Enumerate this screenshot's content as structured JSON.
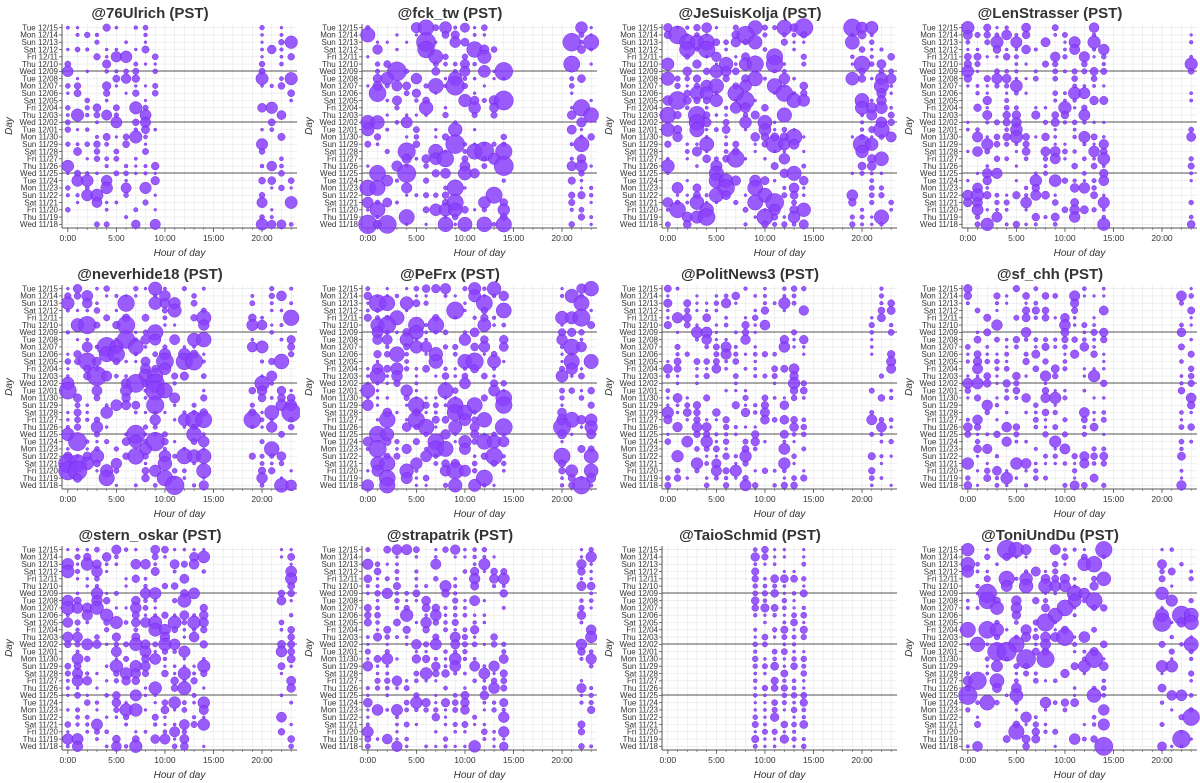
{
  "colors": {
    "dot": "#8a3ffc",
    "dot_stroke": "#6a1fd8",
    "grid": "#e6e6e6",
    "axis": "#555555",
    "week_line": "#555555"
  },
  "chart_data": [
    {
      "type": "scatter",
      "title": "@76Ulrich (PST)",
      "xlabel": "Hour of day",
      "ylabel": "Day",
      "active_hours": [
        0,
        1,
        2,
        3,
        4,
        5,
        6,
        7,
        8,
        9,
        20,
        21,
        22,
        23
      ],
      "density": 0.55,
      "size_scale": 0.6,
      "seed": 11
    },
    {
      "type": "scatter",
      "title": "@fck_tw (PST)",
      "xlabel": "Hour of day",
      "ylabel": "Day",
      "active_hours": [
        0,
        1,
        2,
        3,
        4,
        5,
        6,
        7,
        8,
        9,
        10,
        11,
        12,
        13,
        14,
        21,
        22,
        23
      ],
      "density": 0.5,
      "size_scale": 1.0,
      "seed": 23
    },
    {
      "type": "scatter",
      "title": "@JeSuisKolja (PST)",
      "xlabel": "Hour of day",
      "ylabel": "Day",
      "active_hours": [
        0,
        1,
        2,
        3,
        4,
        5,
        6,
        7,
        8,
        9,
        10,
        11,
        12,
        13,
        14,
        19,
        20,
        21,
        22,
        23
      ],
      "density": 0.6,
      "size_scale": 0.95,
      "seed": 37
    },
    {
      "type": "scatter",
      "title": "@LenStrasser (PST)",
      "xlabel": "Hour of day",
      "ylabel": "Day",
      "active_hours": [
        0,
        1,
        2,
        3,
        4,
        5,
        6,
        7,
        8,
        9,
        10,
        11,
        12,
        13,
        14,
        23
      ],
      "density": 0.6,
      "size_scale": 0.6,
      "seed": 41
    },
    {
      "type": "scatter",
      "title": "@neverhide18 (PST)",
      "xlabel": "Hour of day",
      "ylabel": "Day",
      "active_hours": [
        0,
        1,
        2,
        3,
        4,
        5,
        6,
        7,
        8,
        9,
        10,
        11,
        12,
        13,
        14,
        19,
        20,
        21,
        22,
        23
      ],
      "density": 0.55,
      "size_scale": 1.0,
      "seed": 53
    },
    {
      "type": "scatter",
      "title": "@PeFrx (PST)",
      "xlabel": "Hour of day",
      "ylabel": "Day",
      "active_hours": [
        0,
        1,
        2,
        3,
        4,
        5,
        6,
        7,
        8,
        9,
        10,
        11,
        12,
        13,
        14,
        20,
        21,
        22,
        23
      ],
      "density": 0.6,
      "size_scale": 0.9,
      "seed": 67
    },
    {
      "type": "scatter",
      "title": "@PolitNews3 (PST)",
      "xlabel": "Hour of day",
      "ylabel": "Day",
      "active_hours": [
        0,
        1,
        2,
        3,
        4,
        5,
        6,
        7,
        8,
        9,
        10,
        11,
        12,
        13,
        14,
        21,
        22,
        23
      ],
      "density": 0.6,
      "size_scale": 0.55,
      "seed": 71
    },
    {
      "type": "scatter",
      "title": "@sf_chh (PST)",
      "xlabel": "Hour of day",
      "ylabel": "Day",
      "active_hours": [
        0,
        1,
        2,
        3,
        4,
        5,
        6,
        7,
        8,
        9,
        10,
        11,
        12,
        13,
        14,
        22,
        23
      ],
      "density": 0.55,
      "size_scale": 0.55,
      "seed": 83
    },
    {
      "type": "scatter",
      "title": "@stern_oskar (PST)",
      "xlabel": "Hour of day",
      "ylabel": "Day",
      "active_hours": [
        0,
        1,
        2,
        3,
        4,
        5,
        6,
        7,
        8,
        9,
        10,
        11,
        12,
        13,
        14,
        22,
        23
      ],
      "density": 0.65,
      "size_scale": 0.65,
      "seed": 97
    },
    {
      "type": "scatter",
      "title": "@strapatrik (PST)",
      "xlabel": "Hour of day",
      "ylabel": "Day",
      "active_hours": [
        0,
        1,
        2,
        3,
        4,
        5,
        6,
        7,
        8,
        9,
        10,
        11,
        12,
        13,
        14,
        22,
        23
      ],
      "density": 0.65,
      "size_scale": 0.6,
      "seed": 101
    },
    {
      "type": "scatter",
      "title": "@TaioSchmid (PST)",
      "xlabel": "Hour of day",
      "ylabel": "Day",
      "active_hours": [
        9,
        10,
        11,
        12,
        13,
        14
      ],
      "density": 0.85,
      "size_scale": 0.35,
      "seed": 113
    },
    {
      "type": "scatter",
      "title": "@ToniUndDu (PST)",
      "xlabel": "Hour of day",
      "ylabel": "Day",
      "active_hours": [
        0,
        1,
        2,
        3,
        4,
        5,
        6,
        7,
        8,
        9,
        10,
        11,
        12,
        13,
        14,
        20,
        21,
        22,
        23
      ],
      "density": 0.45,
      "size_scale": 1.0,
      "seed": 127
    }
  ],
  "days": [
    "Tue 12/15",
    "Mon 12/14",
    "Sun 12/13",
    "Sat 12/12",
    "Fri 12/11",
    "Thu 12/10",
    "Wed 12/09",
    "Tue 12/08",
    "Mon 12/07",
    "Sun 12/06",
    "Sat 12/05",
    "Fri 12/04",
    "Thu 12/03",
    "Wed 12/02",
    "Tue 12/01",
    "Mon 11/30",
    "Sun 11/29",
    "Sat 11/28",
    "Fri 11/27",
    "Thu 11/26",
    "Wed 11/25",
    "Tue 11/24",
    "Mon 11/23",
    "Sun 11/22",
    "Sat 11/21",
    "Fri 11/20",
    "Thu 11/19",
    "Wed 11/18"
  ],
  "week_separators": [
    "Wed 12/09",
    "Wed 12/02",
    "Wed 11/25"
  ],
  "x_ticks": [
    {
      "v": 0,
      "label": "0:00"
    },
    {
      "v": 5,
      "label": "5:00"
    },
    {
      "v": 10,
      "label": "10:00"
    },
    {
      "v": 15,
      "label": "15:00"
    },
    {
      "v": 20,
      "label": "20:00"
    }
  ],
  "x_range": [
    -0.6,
    23.6
  ]
}
